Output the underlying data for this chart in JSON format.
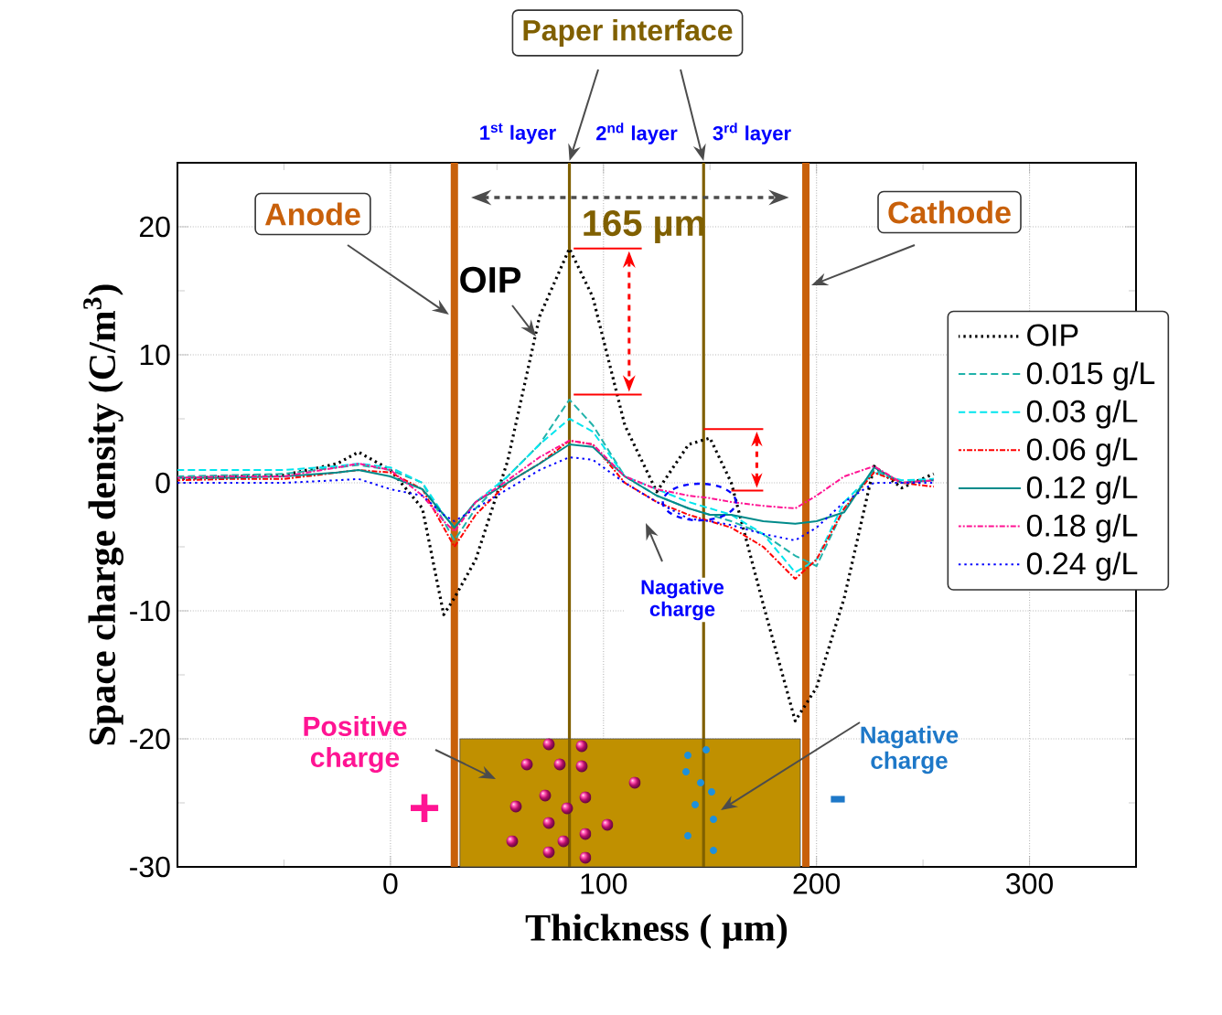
{
  "chart_data": {
    "type": "line",
    "xlabel": "Thickness ( µm)",
    "ylabel": "Space charge density (C/m$^{3}$)",
    "x": [
      -100,
      -75,
      -50,
      -25,
      -15,
      0,
      15,
      25,
      30,
      40,
      55,
      70,
      84,
      95,
      110,
      125,
      140,
      150,
      160,
      175,
      190,
      200,
      213,
      227,
      240,
      255
    ],
    "series": [
      {
        "name": "OIP",
        "color": "#000000",
        "line_style": "dotted",
        "values": [
          0.3,
          0.5,
          0.6,
          1.5,
          2.4,
          1,
          -2,
          -10.3,
          -9,
          -6,
          1.7,
          13,
          18.3,
          14.5,
          4.5,
          -0.7,
          3,
          3.5,
          0,
          -9.5,
          -18.6,
          -16,
          -9,
          1.3,
          -0.4,
          0.7
        ]
      },
      {
        "name": "0.015 g/L",
        "color": "#20b2aa",
        "line_style": "dashed",
        "values": [
          0.5,
          0.6,
          0.7,
          1.2,
          1.4,
          1,
          0,
          -3,
          -4.5,
          -2,
          0.5,
          3,
          6.5,
          4.5,
          0.5,
          -1,
          -2,
          -2.5,
          -3,
          -4,
          -5.7,
          -6.5,
          -2,
          1,
          0,
          0.3
        ]
      },
      {
        "name": "0.03 g/L",
        "color": "#00e5ee",
        "line_style": "dashed",
        "values": [
          1,
          1,
          1,
          1.3,
          1.5,
          1.2,
          0,
          -2.5,
          -3.5,
          -1.5,
          0.5,
          3,
          5,
          4,
          0.5,
          -0.5,
          -1.5,
          -2,
          -2.5,
          -4,
          -7,
          -6,
          -1.5,
          0.8,
          0.2,
          0.3
        ]
      },
      {
        "name": "0.06 g/L",
        "color": "#ff0000",
        "line_style": "dashdot",
        "values": [
          0.2,
          0.3,
          0.3,
          0.8,
          1,
          0.8,
          -0.5,
          -3.5,
          -5,
          -2.5,
          0,
          1.5,
          3.3,
          3,
          0,
          -1.5,
          -2.5,
          -3,
          -3.5,
          -5,
          -7.5,
          -6,
          -2,
          0.8,
          0,
          -0.3
        ]
      },
      {
        "name": "0.12 g/L",
        "color": "#008b8b",
        "line_style": "solid",
        "values": [
          0.4,
          0.4,
          0.5,
          0.8,
          1,
          0.5,
          -0.5,
          -2.5,
          -3.5,
          -1.5,
          0,
          1.5,
          3,
          2.8,
          0.5,
          -1,
          -2,
          -2.5,
          -2.5,
          -3,
          -3.2,
          -3,
          -2.3,
          1.2,
          0,
          0.2
        ]
      },
      {
        "name": "0.18 g/L",
        "color": "#ff1493",
        "line_style": "dashdot",
        "values": [
          0.4,
          0.5,
          0.5,
          1.2,
          1.5,
          1,
          -1,
          -3,
          -3.8,
          -1.5,
          0.2,
          2,
          3.3,
          3,
          0.5,
          -0.5,
          -1,
          -1.2,
          -1.5,
          -1.8,
          -2,
          -1,
          0.5,
          1.3,
          0,
          0.2
        ]
      },
      {
        "name": "0.24 g/L",
        "color": "#0000ff",
        "line_style": "dotted",
        "values": [
          0,
          0,
          0,
          0.2,
          0.3,
          -0.5,
          -1,
          -2.5,
          -3,
          -2,
          -0.5,
          1,
          2,
          1.8,
          0,
          -1.5,
          -2.8,
          -3,
          -3.3,
          -4,
          -4.5,
          -3.5,
          -1.5,
          0,
          0,
          0
        ]
      }
    ],
    "xlim": [
      -100,
      350
    ],
    "ylim": [
      -30,
      25
    ],
    "xticks": [
      {
        "value": -100,
        "label": null
      },
      {
        "value": -50,
        "label": null
      },
      0,
      {
        "value": 50,
        "label": null
      },
      100,
      {
        "value": 150,
        "label": null
      },
      200,
      {
        "value": 250,
        "label": null
      },
      300,
      {
        "value": 350,
        "label": null
      }
    ],
    "yticks": [
      -30,
      {
        "value": -25,
        "label": null
      },
      -20,
      {
        "value": -15,
        "label": null
      },
      -10,
      {
        "value": -5,
        "label": null
      },
      0,
      {
        "value": 5,
        "label": null
      },
      10,
      {
        "value": 15,
        "label": null
      },
      20,
      {
        "value": 25,
        "label": null
      }
    ],
    "grid": true,
    "legend": "right",
    "ref_lines": [
      {
        "axis": "x",
        "value": 30,
        "label": "Anode",
        "color": "#c8600a"
      },
      {
        "axis": "x",
        "value": 195,
        "label": "Cathode",
        "color": "#c8600a"
      },
      {
        "axis": "x",
        "value": 84,
        "color": "#806000"
      },
      {
        "axis": "x",
        "value": 147,
        "color": "#806000"
      }
    ],
    "annotations": [
      "Paper interface",
      "1$^{st}$ layer",
      "2$^{nd}$ layer",
      "3$^{rd}$ layer",
      "165 µm",
      "OIP",
      "Nagative charge",
      "Positive charge",
      "Nagative charge",
      "+",
      "-"
    ]
  }
}
